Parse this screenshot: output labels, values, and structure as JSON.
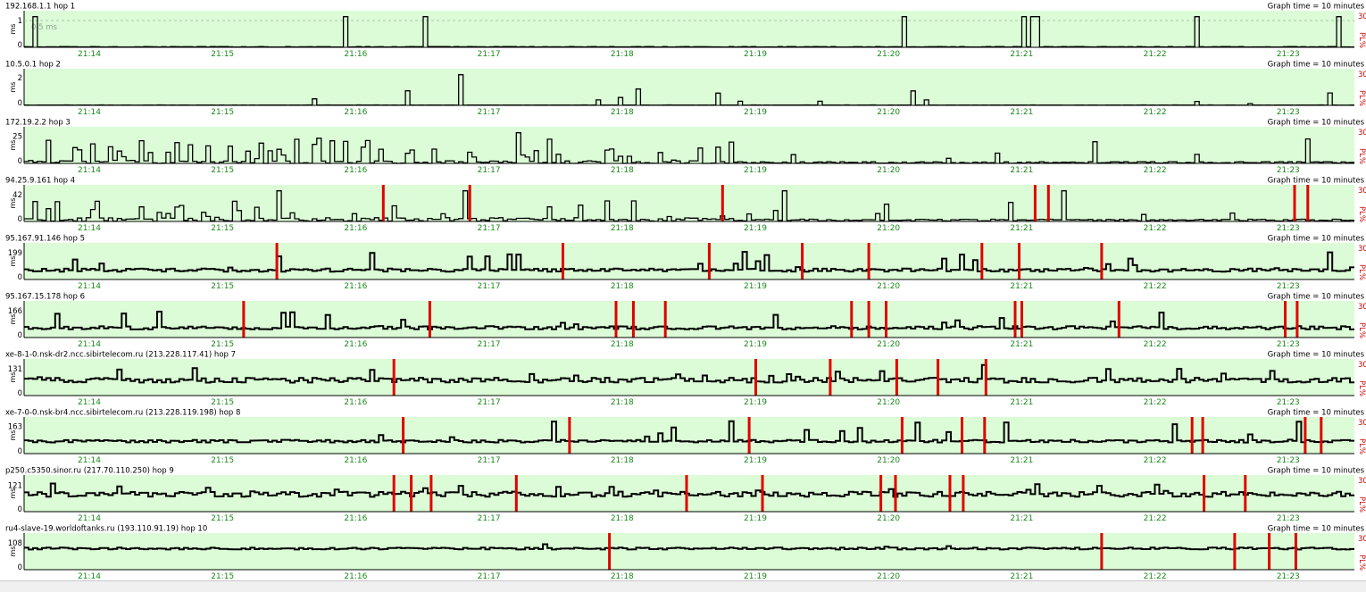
{
  "graph_time_label": "Graph time = 10 minutes",
  "pl_label": "PL%",
  "pl_max_label": "30",
  "ms_label": "ms",
  "time_ticks": [
    "21:14",
    "21:15",
    "21:16",
    "21:17",
    "21:18",
    "21:19",
    "21:20",
    "21:21",
    "21:22",
    "21:23"
  ],
  "colors": {
    "plot_bg": "#dbfcd6",
    "latency_line": "#000000",
    "loss_bar": "#e00000",
    "tick_text": "#1a8a1a"
  },
  "chart_data": [
    {
      "type": "line",
      "title": "192.168.1.1 hop 1",
      "yticks": [
        "1",
        "0"
      ],
      "ylim": [
        0,
        1.3
      ],
      "avg_label": "0.5 ms",
      "base": 0.02,
      "noise": 0.01,
      "spike_max": 1.3,
      "spike_rate": 0.0,
      "spikes": [
        0.005,
        0.24,
        0.3,
        0.66,
        0.75,
        0.755,
        0.76,
        0.88,
        0.985
      ],
      "loss": []
    },
    {
      "type": "line",
      "title": "10.5.0.1 hop 2",
      "yticks": [
        "2",
        "0"
      ],
      "ylim": [
        0,
        2.5
      ],
      "base": 0.02,
      "noise": 0.01,
      "spike_max": 1.2,
      "spike_rate": 0.06,
      "spikes": [
        0.325
      ],
      "loss": []
    },
    {
      "type": "line",
      "title": "172.19.2.2 hop 3",
      "yticks": [
        "25",
        "0"
      ],
      "ylim": [
        0,
        32
      ],
      "base": 1.2,
      "noise": 1.5,
      "spike_max": 22,
      "spike_rate": 0.25,
      "quiet_after": 0.53,
      "spikes": [
        0.37
      ],
      "loss": []
    },
    {
      "type": "line",
      "title": "94.25.9.161 hop 4",
      "yticks": [
        "42",
        "0"
      ],
      "ylim": [
        0,
        55
      ],
      "base": 3,
      "noise": 3,
      "spike_max": 30,
      "spike_rate": 0.18,
      "quiet_after": 0.53,
      "spikes": [
        0.19,
        0.33,
        0.57,
        0.78
      ],
      "loss": [
        0.27,
        0.335,
        0.525,
        0.76,
        0.77,
        0.955,
        0.965
      ]
    },
    {
      "type": "line",
      "title": "95.167.91.146 hop 5",
      "yticks": [
        "199",
        "0"
      ],
      "ylim": [
        0,
        260
      ],
      "base": 70,
      "noise": 12,
      "spike_max": 140,
      "spike_rate": 0.08,
      "spikes": [],
      "loss": [
        0.19,
        0.405,
        0.515,
        0.585,
        0.635,
        0.72,
        0.748,
        0.81
      ]
    },
    {
      "type": "line",
      "title": "95.167.15.178 hop 6",
      "yticks": [
        "166",
        "0"
      ],
      "ylim": [
        0,
        215
      ],
      "base": 60,
      "noise": 10,
      "spike_max": 105,
      "spike_rate": 0.06,
      "spikes": [],
      "loss": [
        0.165,
        0.305,
        0.445,
        0.458,
        0.482,
        0.622,
        0.635,
        0.648,
        0.745,
        0.75,
        0.823,
        0.948,
        0.957
      ]
    },
    {
      "type": "line",
      "title": "xe-8-1-0.nsk-dr2.ncc.sibirtelecom.ru (213.228.117.41) hop 7",
      "yticks": [
        "131",
        "0"
      ],
      "ylim": [
        0,
        170
      ],
      "base": 75,
      "noise": 12,
      "spike_max": 60,
      "spike_rate": 0.06,
      "spikes": [
        0.72
      ],
      "loss": [
        0.278,
        0.55,
        0.606,
        0.656,
        0.687,
        0.723
      ]
    },
    {
      "type": "line",
      "title": "xe-7-0-0.nsk-br4.ncc.sibirtelecom.ru (213.228.119.198) hop 8",
      "yticks": [
        "163",
        "0"
      ],
      "ylim": [
        0,
        210
      ],
      "base": 75,
      "noise": 8,
      "spike_max": 120,
      "spike_rate": 0.05,
      "spikes": [],
      "loss": [
        0.285,
        0.41,
        0.545,
        0.66,
        0.705,
        0.722,
        0.878,
        0.886,
        0.963,
        0.975
      ]
    },
    {
      "type": "line",
      "title": "p250.c5350.sinor.ru (217.70.110.250) hop 9",
      "yticks": [
        "121",
        "0"
      ],
      "ylim": [
        0,
        160
      ],
      "base": 80,
      "noise": 12,
      "spike_max": 50,
      "spike_rate": 0.06,
      "spikes": [],
      "loss": [
        0.278,
        0.291,
        0.306,
        0.37,
        0.498,
        0.555,
        0.644,
        0.655,
        0.696,
        0.706,
        0.887,
        0.918
      ]
    },
    {
      "type": "line",
      "title": "ru4-slave-19.worldoftanks.ru (193.110.91.19) hop 10",
      "yticks": [
        "108",
        "0"
      ],
      "ylim": [
        0,
        140
      ],
      "base": 85,
      "noise": 4,
      "spike_max": 30,
      "spike_rate": 0.02,
      "spikes": [],
      "loss": [
        0.44,
        0.81,
        0.91,
        0.936,
        0.956
      ]
    }
  ]
}
